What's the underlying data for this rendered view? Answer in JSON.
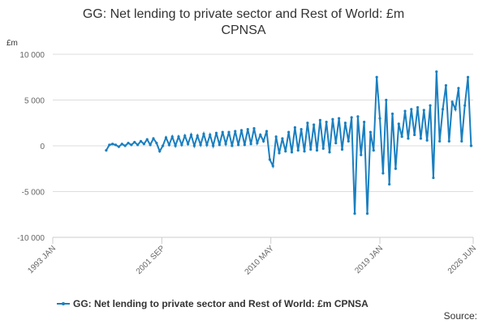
{
  "chart_data": {
    "type": "line",
    "title": "GG: Net lending to private sector and Rest of World: £m CPNSA",
    "y_label": "£m",
    "source": "Source:",
    "xlim": [
      "1993 JAN",
      "2026 JUN"
    ],
    "xticks": [
      "1993 JAN",
      "2001 SEP",
      "2010 MAY",
      "2019 JAN",
      "2026 JUN"
    ],
    "ylim": [
      -10000,
      10000
    ],
    "yticks": [
      {
        "value": -10000,
        "label": "-10 000"
      },
      {
        "value": -5000,
        "label": "-5 000"
      },
      0,
      {
        "value": 5000,
        "label": "5 000"
      },
      {
        "value": 10000,
        "label": "10 000"
      }
    ],
    "grid": true,
    "x": [
      "1997 APR",
      "1997 JUL",
      "1997 OCT",
      "1998 JAN",
      "1998 APR",
      "1998 JUL",
      "1998 OCT",
      "1999 JAN",
      "1999 APR",
      "1999 JUL",
      "1999 OCT",
      "2000 JAN",
      "2000 APR",
      "2000 JUL",
      "2000 OCT",
      "2001 JAN",
      "2001 APR",
      "2001 JUL",
      "2001 OCT",
      "2002 JAN",
      "2002 APR",
      "2002 JUL",
      "2002 OCT",
      "2003 JAN",
      "2003 APR",
      "2003 JUL",
      "2003 OCT",
      "2004 JAN",
      "2004 APR",
      "2004 JUL",
      "2004 OCT",
      "2005 JAN",
      "2005 APR",
      "2005 JUL",
      "2005 OCT",
      "2006 JAN",
      "2006 APR",
      "2006 JUL",
      "2006 OCT",
      "2007 JAN",
      "2007 APR",
      "2007 JUL",
      "2007 OCT",
      "2008 JAN",
      "2008 APR",
      "2008 JUL",
      "2008 OCT",
      "2009 JAN",
      "2009 APR",
      "2009 JUL",
      "2009 OCT",
      "2010 JAN",
      "2010 APR",
      "2010 JUL",
      "2010 OCT",
      "2011 JAN",
      "2011 APR",
      "2011 JUL",
      "2011 OCT",
      "2012 JAN",
      "2012 APR",
      "2012 JUL",
      "2012 OCT",
      "2013 JAN",
      "2013 APR",
      "2013 JUL",
      "2013 OCT",
      "2014 JAN",
      "2014 APR",
      "2014 JUL",
      "2014 OCT",
      "2015 JAN",
      "2015 APR",
      "2015 JUL",
      "2015 OCT",
      "2016 JAN",
      "2016 APR",
      "2016 JUL",
      "2016 OCT",
      "2017 JAN",
      "2017 APR",
      "2017 JUL",
      "2017 OCT",
      "2018 JAN",
      "2018 APR",
      "2018 JUL",
      "2018 OCT",
      "2019 JAN",
      "2019 APR",
      "2019 JUL",
      "2019 OCT",
      "2020 JAN",
      "2020 APR",
      "2020 JUL",
      "2020 OCT",
      "2021 JAN",
      "2021 APR",
      "2021 JUL",
      "2021 OCT",
      "2022 JAN",
      "2022 APR",
      "2022 JUL",
      "2022 OCT",
      "2023 JAN",
      "2023 APR",
      "2023 JUL",
      "2023 OCT",
      "2024 JAN",
      "2024 APR",
      "2024 JUL",
      "2024 OCT",
      "2025 JAN",
      "2025 APR",
      "2025 JUL",
      "2025 OCT",
      "2026 JAN",
      "2026 APR"
    ],
    "series": [
      {
        "name": "GG: Net lending to private sector and Rest of World: £m CPNSA",
        "color": "#1a7fc0",
        "values": [
          -500,
          100,
          200,
          100,
          -100,
          200,
          0,
          300,
          100,
          400,
          100,
          500,
          200,
          700,
          100,
          800,
          300,
          -600,
          0,
          900,
          100,
          1000,
          0,
          1000,
          100,
          1100,
          200,
          1200,
          0,
          1100,
          100,
          1300,
          100,
          1200,
          0,
          1400,
          100,
          1500,
          200,
          1500,
          0,
          1600,
          100,
          1700,
          100,
          1800,
          200,
          1900,
          300,
          1200,
          500,
          1600,
          -1500,
          -2200,
          1000,
          -800,
          800,
          -600,
          1500,
          -700,
          2000,
          -500,
          1800,
          -600,
          2500,
          -400,
          2300,
          -500,
          2800,
          -300,
          2600,
          -700,
          2900,
          300,
          3000,
          -400,
          2500,
          500,
          3100,
          -7400,
          3200,
          -1000,
          2600,
          -7400,
          1500,
          -500,
          7500,
          3000,
          -3000,
          5000,
          -4200,
          3500,
          -2500,
          2400,
          1000,
          3800,
          800,
          4000,
          1200,
          4200,
          800,
          3900,
          600,
          4400,
          -3500,
          8100,
          500,
          4000,
          6600,
          500,
          4800,
          4000,
          6300,
          500,
          4400,
          7500,
          0
        ]
      }
    ]
  }
}
